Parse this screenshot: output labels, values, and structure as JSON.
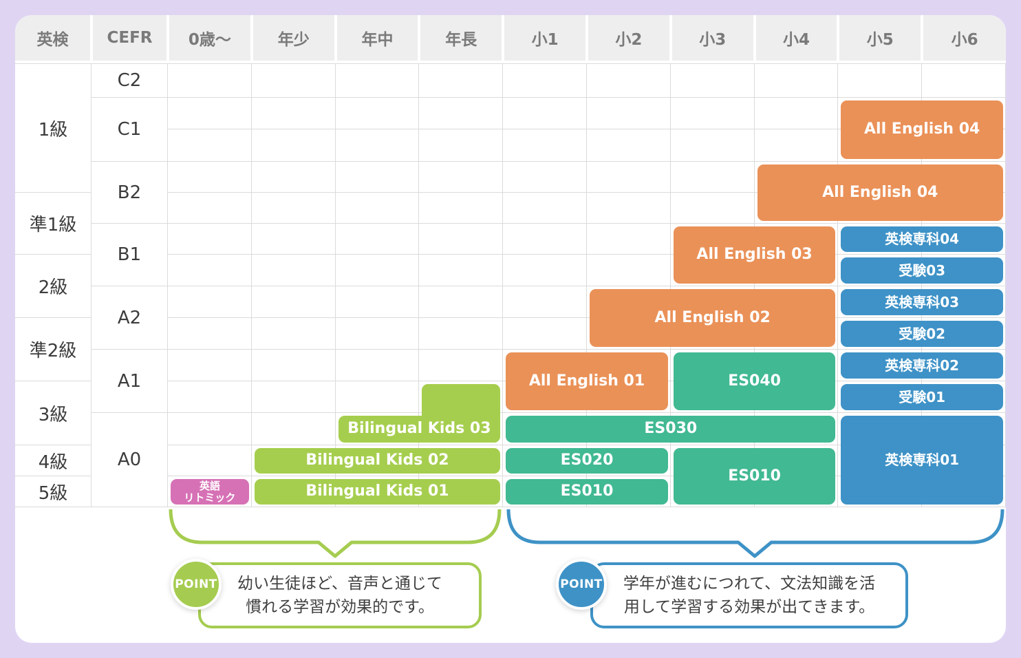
{
  "table": {
    "header": {
      "eiken_label": "英検",
      "cefr_label": "CEFR",
      "age_columns": [
        "0歳〜",
        "年少",
        "年中",
        "年長",
        "小1",
        "小2",
        "小3",
        "小4",
        "小5",
        "小6"
      ]
    },
    "eiken_levels": [
      {
        "label": "1級",
        "rows": [
          1,
          4
        ]
      },
      {
        "label": "準1級",
        "rows": [
          5,
          6
        ]
      },
      {
        "label": "2級",
        "rows": [
          7,
          8
        ]
      },
      {
        "label": "準2級",
        "rows": [
          9,
          10
        ]
      },
      {
        "label": "3級",
        "rows": [
          11,
          12
        ]
      },
      {
        "label": "4級",
        "rows": [
          13,
          13
        ]
      },
      {
        "label": "5級",
        "rows": [
          14,
          14
        ]
      }
    ],
    "cefr_levels": [
      {
        "label": "C2",
        "rows": [
          1,
          1
        ]
      },
      {
        "label": "C1",
        "rows": [
          2,
          3
        ]
      },
      {
        "label": "B2",
        "rows": [
          4,
          5
        ]
      },
      {
        "label": "B1",
        "rows": [
          6,
          7
        ]
      },
      {
        "label": "A2",
        "rows": [
          8,
          9
        ]
      },
      {
        "label": "A1",
        "rows": [
          10,
          11
        ]
      },
      {
        "label": "A0",
        "rows": [
          12,
          14
        ]
      }
    ],
    "courses": [
      {
        "label": "All English 04",
        "color": "orange",
        "cols": [
          9,
          10
        ],
        "rows": [
          2,
          3
        ],
        "font": "md"
      },
      {
        "label": "All English 04",
        "color": "orange",
        "cols": [
          8,
          10
        ],
        "rows": [
          4,
          5
        ],
        "font": "md"
      },
      {
        "label": "All English 03",
        "color": "orange",
        "cols": [
          7,
          8
        ],
        "rows": [
          6,
          7
        ],
        "font": "md"
      },
      {
        "label": "英検専科04",
        "color": "blue",
        "cols": [
          9,
          10
        ],
        "rows": [
          6,
          6
        ],
        "font": "sm"
      },
      {
        "label": "受験03",
        "color": "blue",
        "cols": [
          9,
          10
        ],
        "rows": [
          7,
          7
        ],
        "font": "sm"
      },
      {
        "label": "All English 02",
        "color": "orange",
        "cols": [
          6,
          8
        ],
        "rows": [
          8,
          9
        ],
        "font": "md"
      },
      {
        "label": "英検専科03",
        "color": "blue",
        "cols": [
          9,
          10
        ],
        "rows": [
          8,
          8
        ],
        "font": "sm"
      },
      {
        "label": "受験02",
        "color": "blue",
        "cols": [
          9,
          10
        ],
        "rows": [
          9,
          9
        ],
        "font": "sm"
      },
      {
        "label": "All English 01",
        "color": "orange",
        "cols": [
          5,
          6
        ],
        "rows": [
          10,
          11
        ],
        "font": "md"
      },
      {
        "label": "ES040",
        "color": "teal",
        "cols": [
          7,
          8
        ],
        "rows": [
          10,
          11
        ],
        "font": "md"
      },
      {
        "label": "英検専科02",
        "color": "blue",
        "cols": [
          9,
          10
        ],
        "rows": [
          10,
          10
        ],
        "font": "sm"
      },
      {
        "label": "受験01",
        "color": "blue",
        "cols": [
          9,
          10
        ],
        "rows": [
          11,
          11
        ],
        "font": "sm"
      },
      {
        "label": "",
        "color": "lime",
        "cols": [
          4,
          4
        ],
        "rows": [
          11,
          12
        ],
        "font": "md"
      },
      {
        "label": "Bilingual Kids 03",
        "color": "lime",
        "cols": [
          3,
          4
        ],
        "rows": [
          12,
          12
        ],
        "font": "md"
      },
      {
        "label": "ES030",
        "color": "teal",
        "cols": [
          5,
          8
        ],
        "rows": [
          12,
          12
        ],
        "font": "md"
      },
      {
        "label": "英検専科01",
        "color": "blue",
        "cols": [
          9,
          10
        ],
        "rows": [
          12,
          14
        ],
        "font": "sm"
      },
      {
        "label": "Bilingual Kids 02",
        "color": "lime",
        "cols": [
          2,
          4
        ],
        "rows": [
          13,
          13
        ],
        "font": "md"
      },
      {
        "label": "ES020",
        "color": "teal",
        "cols": [
          5,
          6
        ],
        "rows": [
          13,
          13
        ],
        "font": "md"
      },
      {
        "label": "ES010",
        "color": "teal",
        "cols": [
          7,
          8
        ],
        "rows": [
          13,
          14
        ],
        "font": "md"
      },
      {
        "label": "英語\nリトミック",
        "color": "pink",
        "cols": [
          1,
          1
        ],
        "rows": [
          14,
          14
        ],
        "font": "xs"
      },
      {
        "label": "Bilingual Kids 01",
        "color": "lime",
        "cols": [
          2,
          4
        ],
        "rows": [
          14,
          14
        ],
        "font": "md"
      },
      {
        "label": "ES010",
        "color": "teal",
        "cols": [
          5,
          6
        ],
        "rows": [
          14,
          14
        ],
        "font": "md"
      }
    ]
  },
  "callouts": {
    "left": {
      "badge": "POINT",
      "line1": "幼い生徒ほど、音声と通じて",
      "line2": "慣れる学習が効果的です。"
    },
    "right": {
      "badge": "POINT",
      "line1": "学年が進むにつれて、文法知識を活",
      "line2": "用して学習する効果が出てきます。"
    }
  },
  "colors": {
    "orange": "#EA9158",
    "blue": "#3E92C7",
    "teal": "#41B992",
    "lime": "#A6CE4E",
    "pink": "#D671B5",
    "grid_line": "#DBDBDB",
    "header_bg": "#EFEEEF",
    "header_text": "#7A7A7A",
    "page_bg": "#DFD5F3",
    "callout_text": "#3F3F3F"
  }
}
